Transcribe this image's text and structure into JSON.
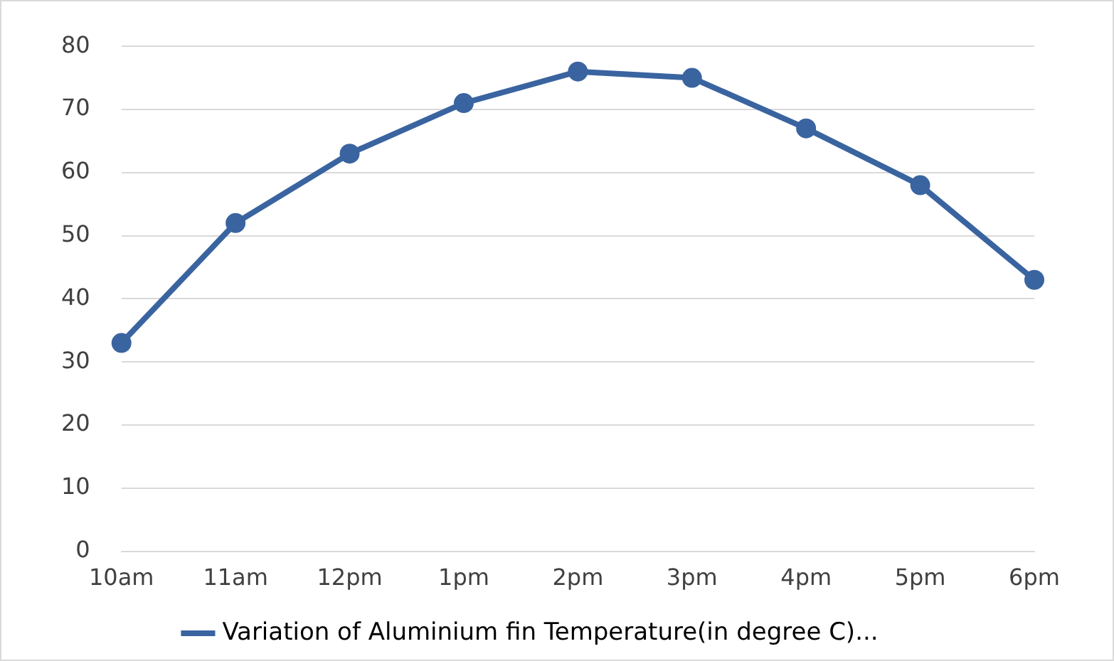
{
  "chart_data": {
    "type": "line",
    "categories": [
      "10am",
      "11am",
      "12pm",
      "1pm",
      "2pm",
      "3pm",
      "4pm",
      "5pm",
      "6pm"
    ],
    "series": [
      {
        "name": "Variation of Aluminium fin Temperature(in degree C)...",
        "color": "#3a64a0",
        "values": [
          33,
          52,
          63,
          71,
          76,
          75,
          67,
          58,
          43
        ]
      }
    ],
    "ylim": [
      0,
      80
    ],
    "yticks": [
      0,
      10,
      20,
      30,
      40,
      50,
      60,
      70,
      80
    ],
    "grid": "y",
    "legend": "bottom",
    "marker": "circle",
    "line_style": "solid"
  }
}
